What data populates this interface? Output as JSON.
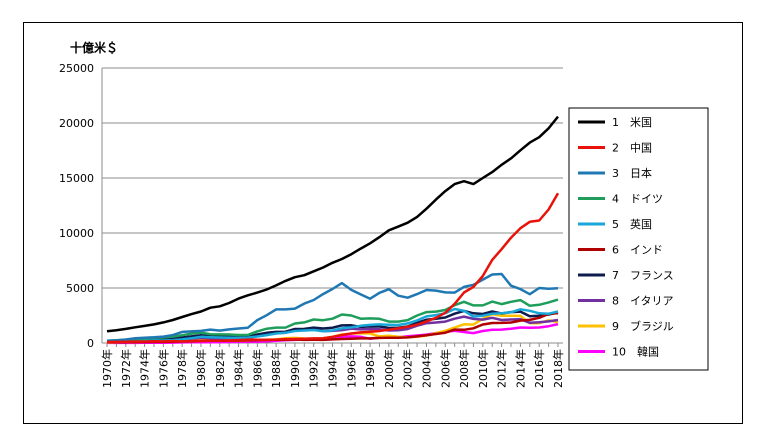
{
  "chart_data": {
    "type": "line",
    "title": "",
    "ylabel": "十億米＄",
    "xlabel": "",
    "ylim": [
      0,
      25000
    ],
    "yticks": [
      0,
      5000,
      10000,
      15000,
      20000,
      25000
    ],
    "ytick_labels": [
      "0",
      "5000",
      "10000",
      "15000",
      "20000",
      "25000"
    ],
    "x": [
      1970,
      1971,
      1972,
      1973,
      1974,
      1975,
      1976,
      1977,
      1978,
      1979,
      1980,
      1981,
      1982,
      1983,
      1984,
      1985,
      1986,
      1987,
      1988,
      1989,
      1990,
      1991,
      1992,
      1993,
      1994,
      1995,
      1996,
      1997,
      1998,
      1999,
      2000,
      2001,
      2002,
      2003,
      2004,
      2005,
      2006,
      2007,
      2008,
      2009,
      2010,
      2011,
      2012,
      2013,
      2014,
      2015,
      2016,
      2017,
      2018
    ],
    "xtick_labels": [
      "1970年",
      "1972年",
      "1974年",
      "1976年",
      "1978年",
      "1980年",
      "1982年",
      "1984年",
      "1986年",
      "1988年",
      "1990年",
      "1992年",
      "1994年",
      "1996年",
      "1998年",
      "2000年",
      "2002年",
      "2004年",
      "2006年",
      "2008年",
      "2010年",
      "2012年",
      "2014年",
      "2016年",
      "2018年"
    ],
    "grid": "horizontal",
    "legend_position": "right",
    "series": [
      {
        "name": "1　米国",
        "color": "#000000",
        "values": [
          1070,
          1160,
          1280,
          1430,
          1550,
          1690,
          1870,
          2090,
          2360,
          2630,
          2860,
          3210,
          3340,
          3640,
          4040,
          4340,
          4580,
          4860,
          5240,
          5650,
          5980,
          6160,
          6520,
          6860,
          7290,
          7640,
          8070,
          8580,
          9060,
          9630,
          10250,
          10580,
          10940,
          11460,
          12210,
          13040,
          13810,
          14450,
          14710,
          14450,
          15000,
          15540,
          16200,
          16780,
          17520,
          18220,
          18710,
          19520,
          20580
        ]
      },
      {
        "name": "2　中国",
        "color": "#e8120b",
        "values": [
          90,
          100,
          110,
          140,
          140,
          160,
          150,
          170,
          150,
          180,
          190,
          200,
          200,
          230,
          260,
          310,
          300,
          270,
          310,
          350,
          360,
          380,
          420,
          440,
          560,
          730,
          860,
          960,
          1030,
          1090,
          1210,
          1340,
          1470,
          1660,
          1960,
          2290,
          2750,
          3550,
          4590,
          5100,
          6090,
          7550,
          8530,
          9570,
          10440,
          11020,
          11140,
          12140,
          13610
        ]
      },
      {
        "name": "3　日本",
        "color": "#1f77b4",
        "values": [
          210,
          240,
          320,
          430,
          480,
          520,
          580,
          720,
          1010,
          1050,
          1100,
          1220,
          1130,
          1240,
          1320,
          1390,
          2080,
          2530,
          3050,
          3050,
          3130,
          3580,
          3910,
          4450,
          4910,
          5450,
          4830,
          4420,
          4030,
          4560,
          4890,
          4300,
          4120,
          4450,
          4820,
          4760,
          4600,
          4580,
          5100,
          5290,
          5760,
          6230,
          6270,
          5210,
          4900,
          4440,
          5000,
          4930,
          4970
        ]
      },
      {
        "name": "4　ドイツ",
        "color": "#1e9e5a",
        "values": [
          210,
          250,
          290,
          380,
          420,
          470,
          500,
          580,
          710,
          850,
          950,
          800,
          780,
          770,
          730,
          740,
          1050,
          1300,
          1400,
          1400,
          1770,
          1870,
          2140,
          2070,
          2210,
          2590,
          2500,
          2210,
          2240,
          2200,
          1950,
          1950,
          2080,
          2500,
          2810,
          2850,
          3000,
          3440,
          3750,
          3420,
          3420,
          3760,
          3540,
          3750,
          3900,
          3380,
          3470,
          3690,
          3950
        ]
      },
      {
        "name": "5　英国",
        "color": "#19a6d8",
        "values": [
          130,
          150,
          170,
          190,
          210,
          240,
          230,
          260,
          330,
          440,
          560,
          530,
          500,
          470,
          460,
          490,
          590,
          720,
          860,
          930,
          1090,
          1140,
          1180,
          1060,
          1140,
          1340,
          1420,
          1560,
          1650,
          1690,
          1660,
          1640,
          1780,
          2050,
          2420,
          2540,
          2710,
          3090,
          2930,
          2410,
          2480,
          2660,
          2700,
          2790,
          3060,
          2930,
          2700,
          2660,
          2860
        ]
      },
      {
        "name": "6　インド",
        "color": "#b00000",
        "values": [
          60,
          70,
          70,
          80,
          90,
          100,
          100,
          120,
          140,
          150,
          190,
          200,
          200,
          220,
          220,
          240,
          260,
          280,
          300,
          300,
          320,
          280,
          290,
          280,
          330,
          360,
          390,
          420,
          420,
          460,
          470,
          480,
          510,
          600,
          700,
          820,
          940,
          1220,
          1200,
          1340,
          1680,
          1820,
          1830,
          1860,
          2040,
          2100,
          2290,
          2650,
          2720
        ]
      },
      {
        "name": "7　フランス",
        "color": "#0d1b4d",
        "values": [
          150,
          170,
          200,
          260,
          280,
          360,
          370,
          410,
          500,
          600,
          700,
          630,
          600,
          570,
          540,
          560,
          770,
          930,
          1010,
          1030,
          1270,
          1280,
          1400,
          1320,
          1390,
          1600,
          1610,
          1460,
          1510,
          1500,
          1370,
          1380,
          1500,
          1840,
          2120,
          2200,
          2320,
          2660,
          2920,
          2700,
          2640,
          2860,
          2680,
          2810,
          2850,
          2440,
          2470,
          2590,
          2780
        ]
      },
      {
        "name": "8　イタリア",
        "color": "#7030a0",
        "values": [
          110,
          120,
          140,
          180,
          200,
          230,
          230,
          260,
          320,
          400,
          480,
          440,
          440,
          450,
          440,
          450,
          640,
          800,
          880,
          930,
          1180,
          1250,
          1320,
          1070,
          1100,
          1170,
          1310,
          1240,
          1270,
          1250,
          1140,
          1160,
          1270,
          1570,
          1800,
          1860,
          1950,
          2210,
          2400,
          2190,
          2130,
          2290,
          2090,
          2140,
          2160,
          1840,
          1880,
          1960,
          2090
        ]
      },
      {
        "name": "9　ブラジル",
        "color": "#ffc000",
        "values": [
          40,
          50,
          60,
          80,
          110,
          130,
          150,
          180,
          200,
          230,
          240,
          260,
          280,
          200,
          200,
          230,
          270,
          300,
          330,
          440,
          460,
          410,
          390,
          440,
          560,
          770,
          850,
          880,
          860,
          600,
          660,
          560,
          510,
          560,
          670,
          890,
          1110,
          1400,
          1700,
          1670,
          2210,
          2620,
          2470,
          2470,
          2460,
          1800,
          1800,
          2060,
          1890
        ]
      },
      {
        "name": "10　韓国",
        "color": "#ff00ff",
        "values": [
          10,
          10,
          10,
          10,
          20,
          20,
          30,
          40,
          50,
          70,
          70,
          70,
          80,
          90,
          100,
          100,
          120,
          150,
          200,
          250,
          280,
          330,
          360,
          390,
          460,
          560,
          600,
          560,
          380,
          490,
          580,
          530,
          610,
          680,
          760,
          900,
          1010,
          1120,
          1000,
          900,
          1090,
          1200,
          1220,
          1300,
          1410,
          1380,
          1410,
          1530,
          1720
        ]
      }
    ]
  }
}
